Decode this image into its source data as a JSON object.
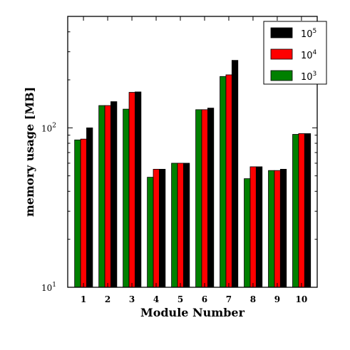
{
  "chart_data": {
    "type": "bar",
    "xlabel": "Module Number",
    "ylabel": "memory usage [MB]",
    "yscale": "log",
    "ylim": [
      10,
      500
    ],
    "yticks": [
      {
        "value": 10,
        "base": "10",
        "exp": "1"
      },
      {
        "value": 100,
        "base": "10",
        "exp": "2"
      }
    ],
    "categories": [
      "1",
      "2",
      "3",
      "4",
      "5",
      "6",
      "7",
      "8",
      "9",
      "10"
    ],
    "series": [
      {
        "name_base": "10",
        "name_exp": "3",
        "color": "#008000",
        "values": [
          84,
          138,
          131,
          49,
          60,
          130,
          210,
          48,
          54,
          91
        ]
      },
      {
        "name_base": "10",
        "name_exp": "4",
        "color": "#ff0000",
        "values": [
          85,
          138,
          167,
          55,
          60,
          130,
          215,
          57,
          54,
          92
        ]
      },
      {
        "name_base": "10",
        "name_exp": "5",
        "color": "#000000",
        "values": [
          100,
          146,
          168,
          55,
          60,
          133,
          265,
          57,
          55,
          92
        ]
      }
    ],
    "legend": {
      "position": "top-right",
      "order": [
        2,
        1,
        0
      ]
    },
    "grid": false
  }
}
